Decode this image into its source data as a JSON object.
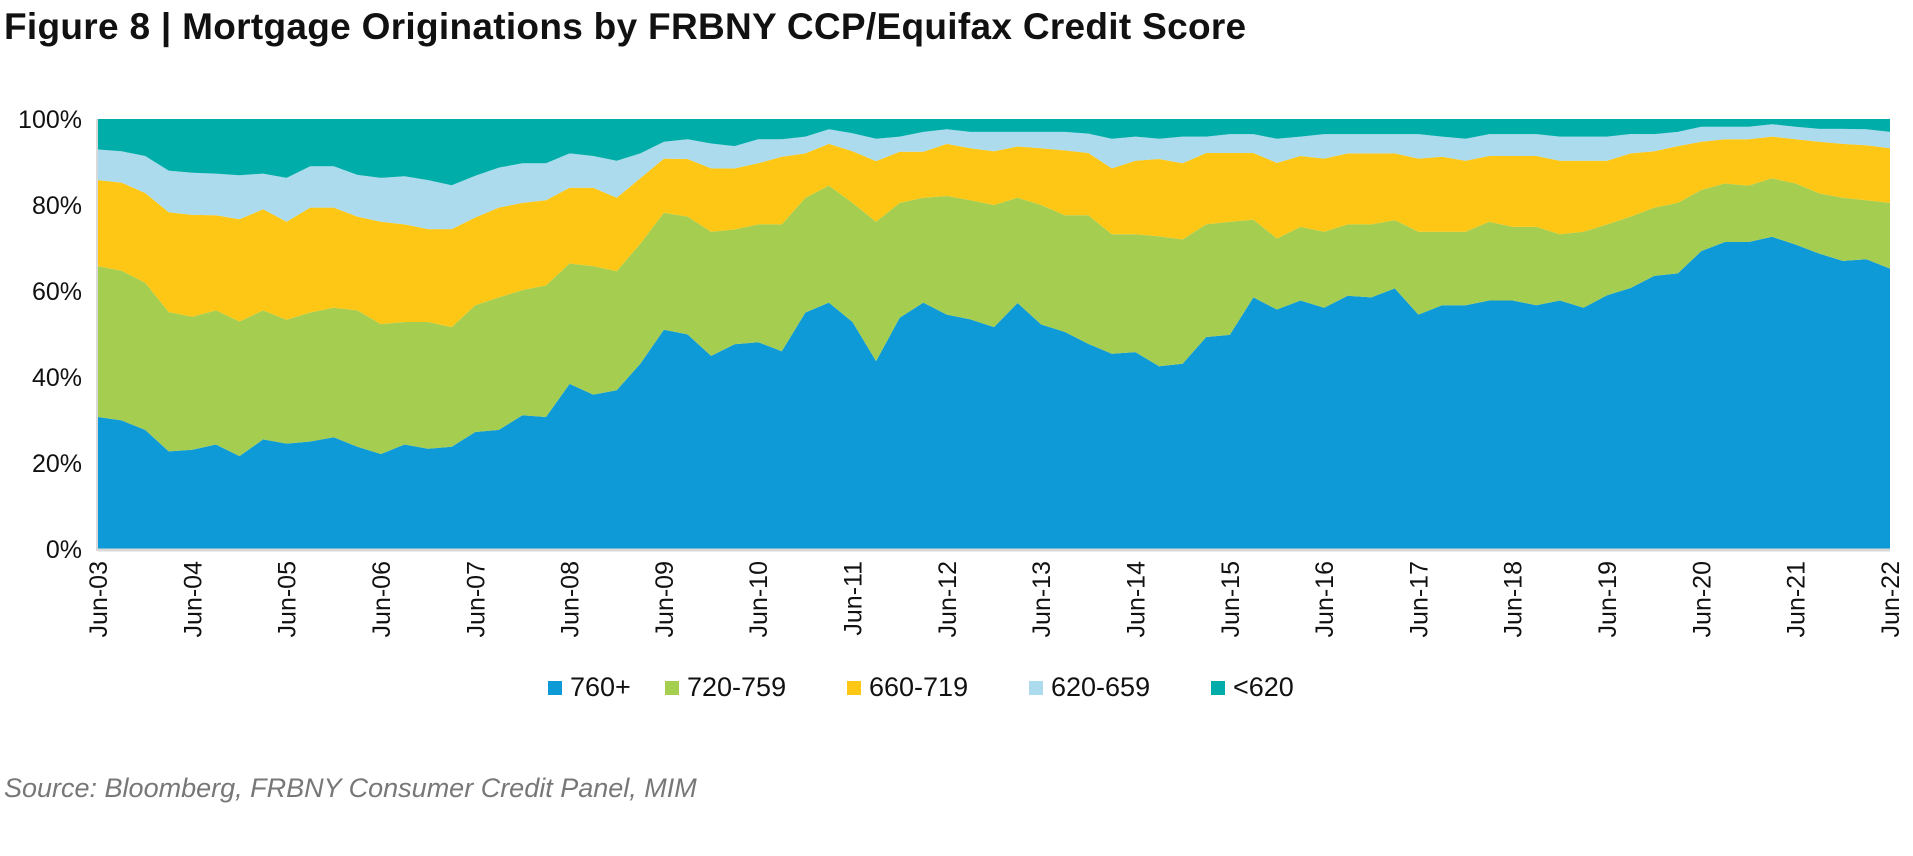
{
  "chart_data": {
    "type": "area",
    "stacked": true,
    "title": "Figure 8 | Mortgage Originations by FRBNY CCP/Equifax Credit Score",
    "source": "Source: Bloomberg, FRBNY Consumer Credit Panel, MIM",
    "xlabel": "",
    "ylabel": "",
    "ylim": [
      0,
      100
    ],
    "yticks": [
      "0%",
      "20%",
      "40%",
      "60%",
      "80%",
      "100%"
    ],
    "xticks": [
      "Jun-03",
      "Jun-04",
      "Jun-05",
      "Jun-06",
      "Jun-07",
      "Jun-08",
      "Jun-09",
      "Jun-10",
      "Jun-11",
      "Jun-12",
      "Jun-13",
      "Jun-14",
      "Jun-15",
      "Jun-16",
      "Jun-17",
      "Jun-18",
      "Jun-19",
      "Jun-20",
      "Jun-21",
      "Jun-22"
    ],
    "x": [
      "Jun-03",
      "Sep-03",
      "Dec-03",
      "Mar-04",
      "Jun-04",
      "Sep-04",
      "Dec-04",
      "Mar-05",
      "Jun-05",
      "Sep-05",
      "Dec-05",
      "Mar-06",
      "Jun-06",
      "Sep-06",
      "Dec-06",
      "Mar-07",
      "Jun-07",
      "Sep-07",
      "Dec-07",
      "Mar-08",
      "Jun-08",
      "Sep-08",
      "Dec-08",
      "Mar-09",
      "Jun-09",
      "Sep-09",
      "Dec-09",
      "Mar-10",
      "Jun-10",
      "Sep-10",
      "Dec-10",
      "Mar-11",
      "Jun-11",
      "Sep-11",
      "Dec-11",
      "Mar-12",
      "Jun-12",
      "Sep-12",
      "Dec-12",
      "Mar-13",
      "Jun-13",
      "Sep-13",
      "Dec-13",
      "Mar-14",
      "Jun-14",
      "Sep-14",
      "Dec-14",
      "Mar-15",
      "Jun-15",
      "Sep-15",
      "Dec-15",
      "Mar-16",
      "Jun-16",
      "Sep-16",
      "Dec-16",
      "Mar-17",
      "Jun-17",
      "Sep-17",
      "Dec-17",
      "Mar-18",
      "Jun-18",
      "Sep-18",
      "Dec-18",
      "Mar-19",
      "Jun-19",
      "Sep-19",
      "Dec-19",
      "Mar-20",
      "Jun-20",
      "Sep-20",
      "Dec-20",
      "Mar-21",
      "Jun-21",
      "Sep-21",
      "Dec-21",
      "Mar-22",
      "Jun-22"
    ],
    "grid": false,
    "legend_position": "bottom",
    "series": [
      {
        "name": "760+",
        "color": "#0e9ad7",
        "values": [
          30.7,
          29.9,
          27.7,
          22.7,
          23.1,
          24.3,
          21.6,
          25.5,
          24.5,
          25.0,
          26.0,
          23.8,
          22.1,
          24.3,
          23.3,
          23.8,
          27.2,
          27.7,
          31.1,
          30.7,
          38.4,
          35.9,
          36.9,
          43.1,
          51.0,
          49.9,
          44.9,
          47.6,
          48.1,
          46.0,
          55.0,
          57.3,
          52.8,
          43.7,
          53.8,
          57.3,
          54.5,
          53.4,
          51.6,
          57.2,
          52.2,
          50.5,
          47.7,
          45.4,
          45.8,
          42.5,
          43.1,
          49.3,
          49.8,
          58.5,
          55.7,
          57.8,
          56.1,
          58.9,
          58.5,
          60.6,
          54.5,
          56.7,
          56.7,
          57.8,
          57.8,
          56.7,
          57.8,
          56.1,
          59.0,
          60.7,
          63.5,
          64.1,
          69.3,
          71.4,
          71.4,
          72.6,
          70.8,
          68.7,
          67.0,
          67.4,
          65.2
        ]
      },
      {
        "name": "720-759",
        "color": "#a5ce50",
        "values": [
          35.1,
          34.8,
          34.2,
          32.4,
          30.9,
          31.2,
          31.3,
          30.0,
          28.8,
          30.0,
          30.1,
          31.7,
          30.2,
          28.5,
          29.5,
          27.8,
          29.5,
          30.8,
          29.1,
          30.6,
          28.0,
          29.9,
          27.7,
          27.9,
          27.2,
          27.4,
          28.9,
          26.7,
          27.4,
          29.5,
          26.7,
          27.2,
          27.7,
          32.4,
          26.7,
          24.4,
          27.6,
          27.7,
          28.4,
          24.5,
          27.8,
          27.1,
          29.9,
          27.8,
          27.4,
          30.2,
          28.9,
          26.2,
          26.3,
          18.1,
          16.5,
          17.1,
          17.7,
          16.6,
          17.0,
          15.9,
          19.3,
          17.1,
          17.1,
          18.3,
          17.1,
          18.2,
          15.4,
          17.7,
          16.5,
          16.6,
          15.9,
          16.4,
          14.2,
          13.6,
          13.1,
          13.6,
          14.2,
          14.0,
          14.7,
          13.7,
          15.3
        ]
      },
      {
        "name": "660-719",
        "color": "#fec716",
        "values": [
          20.0,
          20.5,
          20.9,
          23.2,
          23.7,
          22.1,
          23.8,
          23.5,
          22.8,
          24.4,
          23.3,
          21.8,
          23.8,
          22.7,
          21.6,
          22.8,
          20.4,
          20.9,
          20.3,
          19.8,
          17.6,
          18.2,
          17.1,
          15.2,
          12.6,
          13.4,
          14.7,
          14.2,
          14.2,
          15.7,
          10.3,
          9.7,
          12.0,
          14.1,
          11.9,
          10.7,
          12.1,
          12.1,
          12.5,
          11.9,
          13.2,
          15.1,
          14.5,
          15.3,
          17.1,
          18.0,
          17.7,
          16.6,
          16.0,
          15.5,
          17.6,
          16.5,
          17.0,
          16.5,
          16.5,
          15.5,
          17.0,
          17.4,
          16.5,
          15.3,
          16.5,
          16.5,
          17.1,
          16.5,
          14.8,
          14.7,
          13.1,
          13.2,
          11.2,
          10.3,
          10.8,
          9.7,
          10.3,
          12.0,
          12.5,
          12.8,
          12.7
        ]
      },
      {
        "name": "620-659",
        "color": "#abdbec",
        "values": [
          7.1,
          7.3,
          8.6,
          9.7,
          9.8,
          9.7,
          10.2,
          8.3,
          10.2,
          9.6,
          9.6,
          9.7,
          10.2,
          11.2,
          11.4,
          10.2,
          9.7,
          9.3,
          9.2,
          8.6,
          8.0,
          7.4,
          8.6,
          5.8,
          3.9,
          4.6,
          5.8,
          5.2,
          5.6,
          4.1,
          3.9,
          3.4,
          4.2,
          5.2,
          3.5,
          4.6,
          3.4,
          3.8,
          4.5,
          3.4,
          3.8,
          4.3,
          4.5,
          6.9,
          5.6,
          4.7,
          6.2,
          3.8,
          4.4,
          4.4,
          5.6,
          4.5,
          5.7,
          4.5,
          4.5,
          4.5,
          5.7,
          4.7,
          5.1,
          5.1,
          5.1,
          5.1,
          5.6,
          5.6,
          5.6,
          4.5,
          4.0,
          3.3,
          3.5,
          2.9,
          2.9,
          2.9,
          2.9,
          3.0,
          3.5,
          3.7,
          3.8
        ]
      },
      {
        "name": "<620",
        "color": "#00ada8",
        "values": [
          7.1,
          7.5,
          8.6,
          12.0,
          12.5,
          12.7,
          13.1,
          12.7,
          13.7,
          11.0,
          11.0,
          13.0,
          13.7,
          13.3,
          14.2,
          15.4,
          13.2,
          11.3,
          10.3,
          10.3,
          8.0,
          8.6,
          9.7,
          8.0,
          5.3,
          4.7,
          5.7,
          6.3,
          4.7,
          4.7,
          4.1,
          2.4,
          3.3,
          4.6,
          4.1,
          3.0,
          2.4,
          3.0,
          3.0,
          3.0,
          3.0,
          3.0,
          3.4,
          4.6,
          4.1,
          4.6,
          4.1,
          4.1,
          3.5,
          3.5,
          4.6,
          4.1,
          3.5,
          3.5,
          3.5,
          3.5,
          3.5,
          4.1,
          4.6,
          3.5,
          3.5,
          3.5,
          4.1,
          4.1,
          4.1,
          3.5,
          3.5,
          3.0,
          1.8,
          1.8,
          1.8,
          1.2,
          1.8,
          2.3,
          2.3,
          2.4,
          3.0
        ]
      }
    ]
  }
}
